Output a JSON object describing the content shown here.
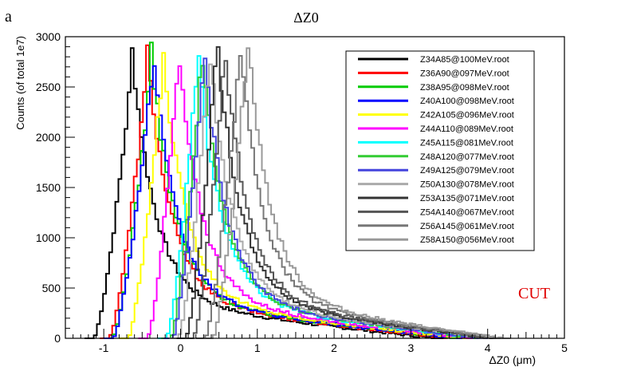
{
  "panel_label": "a",
  "chart_data": {
    "type": "line",
    "title": "ΔZ0",
    "xlabel": "ΔZ0 (μm)",
    "ylabel": "Counts (of total 1e7)",
    "xlim": [
      -1.5,
      5
    ],
    "ylim": [
      0,
      3000
    ],
    "xticks": [
      -1,
      0,
      1,
      2,
      3,
      4,
      5
    ],
    "xtick_labels": [
      "-1",
      "0",
      "1",
      "2",
      "3",
      "4",
      "5"
    ],
    "yticks": [
      0,
      500,
      1000,
      1500,
      2000,
      2500,
      3000
    ],
    "ytick_labels": [
      "0",
      "500",
      "1000",
      "1500",
      "2000",
      "2500",
      "3000"
    ],
    "grid": false,
    "legend_position": "top-right",
    "annotation": "CUT",
    "annotation_color": "#e00000",
    "series": [
      {
        "name": "Z34A85@100MeV.root",
        "color": "#000000",
        "start": -1.15,
        "peak_x": -0.65,
        "peak_y": 2700,
        "end": 3.3
      },
      {
        "name": "Z36A90@097MeV.root",
        "color": "#ff0000",
        "start": -0.95,
        "peak_x": -0.45,
        "peak_y": 2700,
        "end": 3.5
      },
      {
        "name": "Z38A95@098MeV.root",
        "color": "#00cc00",
        "start": -0.9,
        "peak_x": -0.4,
        "peak_y": 2700,
        "end": 3.6
      },
      {
        "name": "Z40A100@098MeV.root",
        "color": "#0000ff",
        "start": -0.9,
        "peak_x": -0.38,
        "peak_y": 2700,
        "end": 3.6
      },
      {
        "name": "Z42A105@096MeV.root",
        "color": "#ffff00",
        "start": -0.7,
        "peak_x": -0.25,
        "peak_y": 2700,
        "end": 3.7
      },
      {
        "name": "Z44A110@089MeV.root",
        "color": "#ff00ff",
        "start": -0.45,
        "peak_x": -0.05,
        "peak_y": 2700,
        "end": 3.8
      },
      {
        "name": "Z45A115@081MeV.root",
        "color": "#00ffff",
        "start": -0.2,
        "peak_x": 0.2,
        "peak_y": 2730,
        "end": 3.85
      },
      {
        "name": "Z48A120@077MeV.root",
        "color": "#33cc33",
        "start": -0.15,
        "peak_x": 0.25,
        "peak_y": 2720,
        "end": 3.9
      },
      {
        "name": "Z49A125@079MeV.root",
        "color": "#4444dd",
        "start": -0.12,
        "peak_x": 0.28,
        "peak_y": 2720,
        "end": 3.9
      },
      {
        "name": "Z50A130@078MeV.root",
        "color": "#aaaaaa",
        "start": -0.05,
        "peak_x": 0.35,
        "peak_y": 2750,
        "end": 4.0
      },
      {
        "name": "Z53A135@071MeV.root",
        "color": "#333333",
        "start": 0.05,
        "peak_x": 0.45,
        "peak_y": 2850,
        "end": 4.05
      },
      {
        "name": "Z54A140@067MeV.root",
        "color": "#555555",
        "start": 0.15,
        "peak_x": 0.55,
        "peak_y": 2800,
        "end": 4.1
      },
      {
        "name": "Z56A145@061MeV.root",
        "color": "#777777",
        "start": 0.3,
        "peak_x": 0.75,
        "peak_y": 2800,
        "end": 4.15
      },
      {
        "name": "Z58A150@056MeV.root",
        "color": "#999999",
        "start": 0.4,
        "peak_x": 0.85,
        "peak_y": 2870,
        "end": 4.2
      }
    ]
  }
}
